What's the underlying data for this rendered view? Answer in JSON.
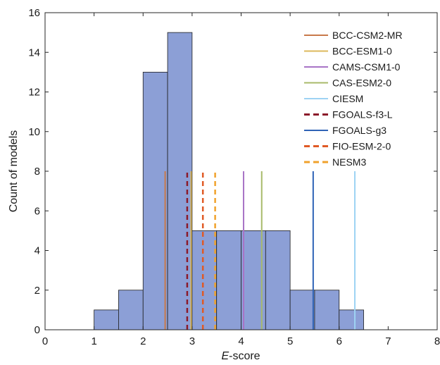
{
  "chart_data": {
    "type": "bar",
    "xlabel_italic": "E",
    "xlabel_rest": "-score",
    "ylabel": "Count of models",
    "xlim": [
      0,
      8
    ],
    "ylim": [
      0,
      16
    ],
    "xticks": [
      "0",
      "1",
      "2",
      "3",
      "4",
      "5",
      "6",
      "7",
      "8"
    ],
    "yticks": [
      "0",
      "2",
      "4",
      "6",
      "8",
      "10",
      "12",
      "14",
      "16"
    ],
    "grid": false,
    "legend_position": "top-right",
    "histogram": {
      "bin_edges": [
        1.0,
        1.5,
        2.0,
        2.5,
        3.0,
        3.5,
        4.0,
        4.5,
        5.0,
        5.5,
        6.0,
        6.5
      ],
      "counts": [
        1,
        2,
        13,
        15,
        5,
        5,
        5,
        5,
        2,
        2,
        1
      ],
      "color": "#8c9fd6"
    },
    "series": [
      {
        "name": "BCC-CSM2-MR",
        "x": 2.45,
        "height": 8,
        "color": "#c8794a",
        "style": "solid"
      },
      {
        "name": "BCC-ESM1-0",
        "x": 2.98,
        "height": 8,
        "color": "#ddb85c",
        "style": "solid"
      },
      {
        "name": "CAMS-CSM1-0",
        "x": 4.05,
        "height": 8,
        "color": "#a874c6",
        "style": "solid"
      },
      {
        "name": "CAS-ESM2-0",
        "x": 4.42,
        "height": 8,
        "color": "#a8ba6a",
        "style": "solid"
      },
      {
        "name": "CIESM",
        "x": 6.32,
        "height": 8,
        "color": "#9ed3f3",
        "style": "solid"
      },
      {
        "name": "FGOALS-f3-L",
        "x": 2.9,
        "height": 8,
        "color": "#8b1a2a",
        "style": "dashed"
      },
      {
        "name": "FGOALS-g3",
        "x": 5.47,
        "height": 8,
        "color": "#2f63b6",
        "style": "solid"
      },
      {
        "name": "FIO-ESM-2-0",
        "x": 3.22,
        "height": 8,
        "color": "#e05a25",
        "style": "dashed"
      },
      {
        "name": "NESM3",
        "x": 3.47,
        "height": 8,
        "color": "#f0a22c",
        "style": "dashed"
      }
    ]
  }
}
